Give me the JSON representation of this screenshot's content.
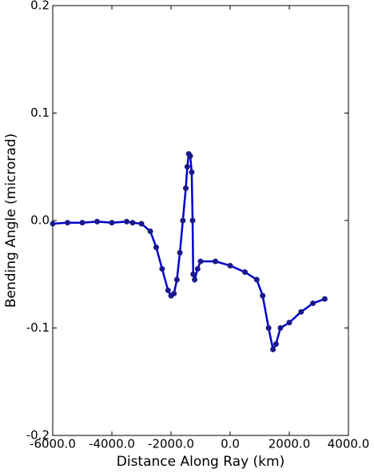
{
  "chart_data": {
    "type": "line",
    "x_label": "Distance Along Ray (km)",
    "y_label": "Bending Angle (microrad)",
    "x": [
      -6000,
      -5500,
      -5000,
      -4500,
      -4000,
      -3500,
      -3300,
      -3000,
      -2700,
      -2500,
      -2300,
      -2100,
      -2000,
      -1900,
      -1800,
      -1700,
      -1600,
      -1500,
      -1450,
      -1400,
      -1350,
      -1300,
      -1270,
      -1250,
      -1200,
      -1100,
      -1000,
      -500,
      0,
      500,
      900,
      1100,
      1300,
      1450,
      1550,
      1700,
      2000,
      2400,
      2800,
      3200
    ],
    "series": [
      {
        "color": "#0000cc",
        "marker_color": "#1a1a8c",
        "values": [
          -0.003,
          -0.002,
          -0.002,
          -0.001,
          -0.002,
          -0.001,
          -0.002,
          -0.003,
          -0.01,
          -0.025,
          -0.045,
          -0.065,
          -0.07,
          -0.068,
          -0.055,
          -0.03,
          0.0,
          0.03,
          0.05,
          0.062,
          0.06,
          0.045,
          0.0,
          -0.05,
          -0.055,
          -0.045,
          -0.038,
          -0.038,
          -0.042,
          -0.048,
          -0.055,
          -0.07,
          -0.1,
          -0.12,
          -0.115,
          -0.1,
          -0.095,
          -0.085,
          -0.077,
          -0.073
        ]
      }
    ],
    "xlim": [
      -6000,
      4000
    ],
    "xticks": [
      {
        "value": -6000,
        "label": "-6000.0"
      },
      {
        "value": -4000,
        "label": "-4000.0"
      },
      {
        "value": -2000,
        "label": "-2000.0"
      },
      {
        "value": 0,
        "label": "0.0"
      },
      {
        "value": 2000,
        "label": "2000.0"
      },
      {
        "value": 4000,
        "label": "4000.0"
      }
    ],
    "ylim": [
      -0.2,
      0.2
    ],
    "yticks": [
      -0.2,
      -0.1,
      {
        "value": 0,
        "label": "0.0"
      },
      0.1,
      0.2
    ]
  }
}
